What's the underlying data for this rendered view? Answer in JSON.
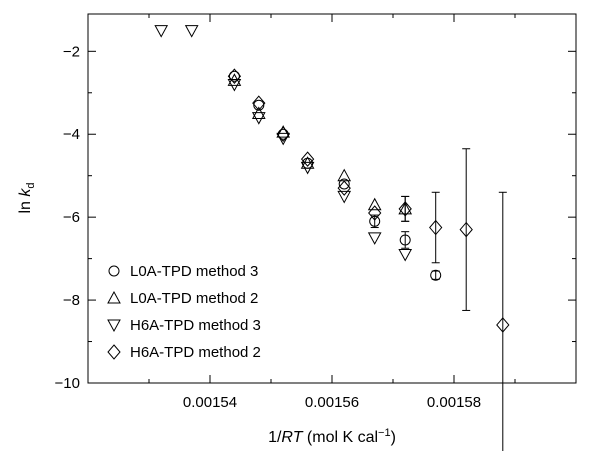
{
  "chart_data": {
    "type": "scatter",
    "xlabel_prefix": "1/",
    "xlabel_var": "RT",
    "xlabel_suffix": " (mol K cal",
    "xlabel_sup": "−1",
    "xlabel_close": ")",
    "ylabel_main": "ln ",
    "ylabel_var": "k",
    "ylabel_sub": "d",
    "xlim": [
      0.00152,
      0.0016
    ],
    "ylim": [
      -10,
      -1.1
    ],
    "x_ticks": [
      {
        "value": 0.00154,
        "label": "0.00154"
      },
      {
        "value": 0.00156,
        "label": "0.00156"
      },
      {
        "value": 0.00158,
        "label": "0.00158"
      }
    ],
    "x_minor_ticks": [
      0.00153,
      0.00155,
      0.00157,
      0.00159
    ],
    "y_ticks": [
      {
        "value": -2,
        "label": "−2"
      },
      {
        "value": -4,
        "label": "−4"
      },
      {
        "value": -6,
        "label": "−6"
      },
      {
        "value": -8,
        "label": "−8"
      },
      {
        "value": -10,
        "label": "−10"
      }
    ],
    "y_minor_ticks": [
      -3,
      -5,
      -7,
      -9
    ],
    "grid": false,
    "legend_position": "bottom-left",
    "series": [
      {
        "name": "L0A-TPD method 3",
        "marker": "circle",
        "points": [
          {
            "x": 0.001544,
            "y": -2.6
          },
          {
            "x": 0.001548,
            "y": -3.3
          },
          {
            "x": 0.001552,
            "y": -4.0
          },
          {
            "x": 0.001556,
            "y": -4.7
          },
          {
            "x": 0.001562,
            "y": -5.2
          },
          {
            "x": 0.001567,
            "y": -6.1,
            "err": 0.15
          },
          {
            "x": 0.001572,
            "y": -6.55,
            "err": 0.2
          },
          {
            "x": 0.001577,
            "y": -7.4,
            "err": 0.1
          }
        ]
      },
      {
        "name": "L0A-TPD method 2",
        "marker": "triangle-up",
        "points": [
          {
            "x": 0.001544,
            "y": -2.7
          },
          {
            "x": 0.001548,
            "y": -3.5
          },
          {
            "x": 0.001552,
            "y": -3.95
          },
          {
            "x": 0.001556,
            "y": -4.7
          },
          {
            "x": 0.001562,
            "y": -5.0
          },
          {
            "x": 0.001567,
            "y": -5.7
          },
          {
            "x": 0.001572,
            "y": -5.8,
            "err": 0.3
          }
        ]
      },
      {
        "name": "H6A-TPD method 3",
        "marker": "triangle-down",
        "points": [
          {
            "x": 0.001532,
            "y": -1.5
          },
          {
            "x": 0.001537,
            "y": -1.5
          },
          {
            "x": 0.001544,
            "y": -2.8
          },
          {
            "x": 0.001548,
            "y": -3.6
          },
          {
            "x": 0.001552,
            "y": -4.1
          },
          {
            "x": 0.001556,
            "y": -4.8
          },
          {
            "x": 0.001562,
            "y": -5.5
          },
          {
            "x": 0.001567,
            "y": -6.5
          },
          {
            "x": 0.001572,
            "y": -6.9
          }
        ]
      },
      {
        "name": "H6A-TPD method 2",
        "marker": "diamond",
        "points": [
          {
            "x": 0.001544,
            "y": -2.6
          },
          {
            "x": 0.001548,
            "y": -3.25
          },
          {
            "x": 0.001552,
            "y": -4.0
          },
          {
            "x": 0.001556,
            "y": -4.6
          },
          {
            "x": 0.001562,
            "y": -5.3
          },
          {
            "x": 0.001567,
            "y": -5.9
          },
          {
            "x": 0.001572,
            "y": -5.8,
            "err": 0.3
          },
          {
            "x": 0.001577,
            "y": -6.25,
            "err": 0.85
          },
          {
            "x": 0.001582,
            "y": -6.3,
            "err": 1.95
          },
          {
            "x": 0.001588,
            "y": -8.6,
            "err": 3.2
          }
        ]
      }
    ]
  }
}
